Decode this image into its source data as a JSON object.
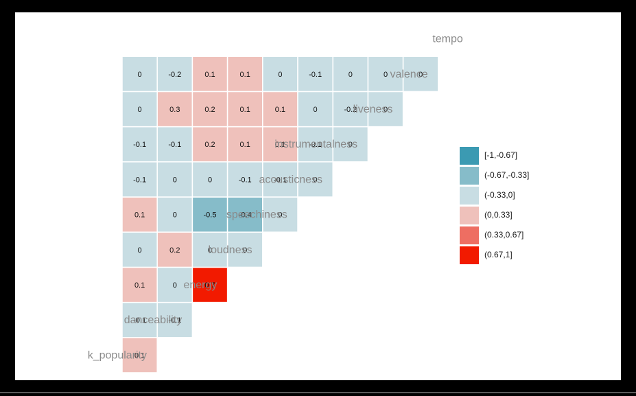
{
  "chart_data": {
    "type": "heatmap",
    "variables": [
      "track_popularity",
      "danceability",
      "energy",
      "loudness",
      "speechiness",
      "acousticness",
      "instrumentalness",
      "liveness",
      "valence",
      "tempo"
    ],
    "visible_labels": [
      "k_popularity",
      "danceability",
      "energy",
      "loudness",
      "speechiness",
      "acousticness",
      "instrumentalness",
      "liveness",
      "valence",
      "tempo"
    ],
    "cells": [
      {
        "row": 0,
        "col": 0,
        "value": 0.1,
        "label": "0.1"
      },
      {
        "row": 1,
        "col": 0,
        "value": -0.1,
        "label": "-0.1"
      },
      {
        "row": 1,
        "col": 1,
        "value": -0.1,
        "label": "-0.1"
      },
      {
        "row": 2,
        "col": 0,
        "value": 0.1,
        "label": "0.1"
      },
      {
        "row": 2,
        "col": 1,
        "value": 0,
        "label": "0"
      },
      {
        "row": 2,
        "col": 2,
        "value": 0.7,
        "label": "0.7"
      },
      {
        "row": 3,
        "col": 0,
        "value": 0,
        "label": "0"
      },
      {
        "row": 3,
        "col": 1,
        "value": 0.2,
        "label": "0.2"
      },
      {
        "row": 3,
        "col": 2,
        "value": 0,
        "label": "0"
      },
      {
        "row": 3,
        "col": 3,
        "value": 0,
        "label": "0"
      },
      {
        "row": 4,
        "col": 0,
        "value": 0.1,
        "label": "0.1"
      },
      {
        "row": 4,
        "col": 1,
        "value": 0,
        "label": "0"
      },
      {
        "row": 4,
        "col": 2,
        "value": -0.5,
        "label": "-0.5"
      },
      {
        "row": 4,
        "col": 3,
        "value": -0.4,
        "label": "-0.4"
      },
      {
        "row": 4,
        "col": 4,
        "value": 0,
        "label": "0"
      },
      {
        "row": 5,
        "col": 0,
        "value": -0.1,
        "label": "-0.1"
      },
      {
        "row": 5,
        "col": 1,
        "value": 0,
        "label": "0"
      },
      {
        "row": 5,
        "col": 2,
        "value": 0,
        "label": "0"
      },
      {
        "row": 5,
        "col": 3,
        "value": -0.1,
        "label": "-0.1"
      },
      {
        "row": 5,
        "col": 4,
        "value": -0.1,
        "label": "-0.1"
      },
      {
        "row": 5,
        "col": 5,
        "value": 0,
        "label": "0"
      },
      {
        "row": 6,
        "col": 0,
        "value": -0.1,
        "label": "-0.1"
      },
      {
        "row": 6,
        "col": 1,
        "value": -0.1,
        "label": "-0.1"
      },
      {
        "row": 6,
        "col": 2,
        "value": 0.2,
        "label": "0.2"
      },
      {
        "row": 6,
        "col": 3,
        "value": 0.1,
        "label": "0.1"
      },
      {
        "row": 6,
        "col": 4,
        "value": 0.1,
        "label": "0.1"
      },
      {
        "row": 6,
        "col": 5,
        "value": -0.1,
        "label": "-0.1"
      },
      {
        "row": 6,
        "col": 6,
        "value": 0,
        "label": "0"
      },
      {
        "row": 7,
        "col": 0,
        "value": 0,
        "label": "0"
      },
      {
        "row": 7,
        "col": 1,
        "value": 0.3,
        "label": "0.3"
      },
      {
        "row": 7,
        "col": 2,
        "value": 0.2,
        "label": "0.2"
      },
      {
        "row": 7,
        "col": 3,
        "value": 0.1,
        "label": "0.1"
      },
      {
        "row": 7,
        "col": 4,
        "value": 0.1,
        "label": "0.1"
      },
      {
        "row": 7,
        "col": 5,
        "value": 0,
        "label": "0"
      },
      {
        "row": 7,
        "col": 6,
        "value": -0.2,
        "label": "-0.2"
      },
      {
        "row": 7,
        "col": 7,
        "value": 0,
        "label": "0"
      },
      {
        "row": 8,
        "col": 0,
        "value": 0,
        "label": "0"
      },
      {
        "row": 8,
        "col": 1,
        "value": -0.2,
        "label": "-0.2"
      },
      {
        "row": 8,
        "col": 2,
        "value": 0.1,
        "label": "0.1"
      },
      {
        "row": 8,
        "col": 3,
        "value": 0.1,
        "label": "0.1"
      },
      {
        "row": 8,
        "col": 4,
        "value": 0,
        "label": "0"
      },
      {
        "row": 8,
        "col": 5,
        "value": -0.1,
        "label": "-0.1"
      },
      {
        "row": 8,
        "col": 6,
        "value": 0,
        "label": "0"
      },
      {
        "row": 8,
        "col": 7,
        "value": 0,
        "label": "0"
      },
      {
        "row": 8,
        "col": 8,
        "value": 0,
        "label": "0"
      }
    ],
    "legend": {
      "placement": "right",
      "items": [
        {
          "label": "[-1,-0.67]",
          "color": "#3b9ab2"
        },
        {
          "label": "(-0.67,-0.33]",
          "color": "#86bcc9"
        },
        {
          "label": "(-0.33,0]",
          "color": "#c8dde3"
        },
        {
          "label": "(0,0.33]",
          "color": "#efc1bb"
        },
        {
          "label": "(0.33,0.67]",
          "color": "#ee6e62"
        },
        {
          "label": "(0.67,1]",
          "color": "#f21a00"
        }
      ]
    },
    "bins": [
      -1,
      -0.67,
      -0.33,
      0,
      0.33,
      0.67,
      1
    ]
  }
}
